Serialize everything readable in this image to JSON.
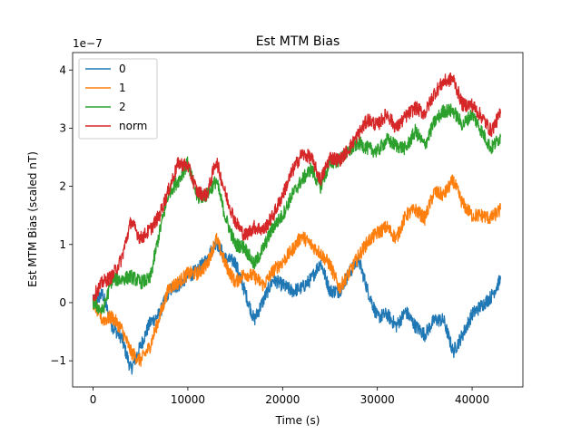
{
  "chart_data": {
    "type": "line",
    "title": "Est MTM Bias",
    "xlabel": "Time (s)",
    "ylabel": "Est MTM Bias (scaled nT)",
    "y_scale_label": "1e−7",
    "xlim": [
      -2160,
      45360
    ],
    "ylim": [
      -1.45,
      4.3
    ],
    "xticks": [
      0,
      10000,
      20000,
      30000,
      40000
    ],
    "xtick_labels": [
      "0",
      "10000",
      "20000",
      "30000",
      "40000"
    ],
    "yticks": [
      -1,
      0,
      1,
      2,
      3,
      4
    ],
    "ytick_labels": [
      "−1",
      "0",
      "1",
      "2",
      "3",
      "4"
    ],
    "grid": false,
    "legend_position": "upper-left",
    "noise": 0.12,
    "series": [
      {
        "name": "0",
        "color": "#1f77b4",
        "points": [
          [
            0,
            0
          ],
          [
            1000,
            0.15
          ],
          [
            2000,
            -0.4
          ],
          [
            3000,
            -0.6
          ],
          [
            4000,
            -1.15
          ],
          [
            5000,
            -0.75
          ],
          [
            6000,
            -0.35
          ],
          [
            7000,
            -0.2
          ],
          [
            8000,
            0.2
          ],
          [
            9000,
            0.3
          ],
          [
            10000,
            0.45
          ],
          [
            11000,
            0.55
          ],
          [
            12000,
            0.75
          ],
          [
            13000,
            1.05
          ],
          [
            14000,
            0.75
          ],
          [
            15000,
            0.7
          ],
          [
            16000,
            0.2
          ],
          [
            17000,
            -0.3
          ],
          [
            18000,
            0.05
          ],
          [
            19000,
            0.4
          ],
          [
            20000,
            0.3
          ],
          [
            21000,
            0.2
          ],
          [
            22000,
            0.25
          ],
          [
            23000,
            0.4
          ],
          [
            24000,
            0.7
          ],
          [
            25000,
            0.2
          ],
          [
            26000,
            0.2
          ],
          [
            27000,
            0.5
          ],
          [
            28000,
            0.75
          ],
          [
            29000,
            0.2
          ],
          [
            30000,
            -0.25
          ],
          [
            31000,
            -0.2
          ],
          [
            32000,
            -0.4
          ],
          [
            33000,
            -0.15
          ],
          [
            34000,
            -0.4
          ],
          [
            35000,
            -0.55
          ],
          [
            36000,
            -0.3
          ],
          [
            37000,
            -0.3
          ],
          [
            38000,
            -0.85
          ],
          [
            39000,
            -0.55
          ],
          [
            40000,
            -0.2
          ],
          [
            41000,
            -0.05
          ],
          [
            42000,
            0.1
          ],
          [
            43000,
            0.4
          ]
        ]
      },
      {
        "name": "1",
        "color": "#ff7f0e",
        "points": [
          [
            0,
            0
          ],
          [
            1000,
            -0.3
          ],
          [
            2000,
            -0.25
          ],
          [
            3000,
            -0.45
          ],
          [
            4000,
            -0.85
          ],
          [
            5000,
            -1.0
          ],
          [
            6000,
            -0.75
          ],
          [
            7000,
            -0.25
          ],
          [
            8000,
            0.25
          ],
          [
            9000,
            0.35
          ],
          [
            10000,
            0.5
          ],
          [
            11000,
            0.5
          ],
          [
            12000,
            0.65
          ],
          [
            13000,
            1.1
          ],
          [
            14000,
            0.65
          ],
          [
            15000,
            0.35
          ],
          [
            16000,
            0.5
          ],
          [
            17000,
            0.45
          ],
          [
            18000,
            0.3
          ],
          [
            19000,
            0.55
          ],
          [
            20000,
            0.7
          ],
          [
            21000,
            0.9
          ],
          [
            22000,
            1.15
          ],
          [
            23000,
            1.0
          ],
          [
            24000,
            0.85
          ],
          [
            25000,
            0.65
          ],
          [
            26000,
            0.25
          ],
          [
            27000,
            0.5
          ],
          [
            28000,
            0.8
          ],
          [
            29000,
            1.05
          ],
          [
            30000,
            1.2
          ],
          [
            31000,
            1.3
          ],
          [
            32000,
            1.1
          ],
          [
            33000,
            1.5
          ],
          [
            34000,
            1.6
          ],
          [
            35000,
            1.45
          ],
          [
            36000,
            1.9
          ],
          [
            37000,
            1.85
          ],
          [
            38000,
            2.1
          ],
          [
            39000,
            1.7
          ],
          [
            40000,
            1.5
          ],
          [
            41000,
            1.5
          ],
          [
            42000,
            1.45
          ],
          [
            43000,
            1.6
          ]
        ]
      },
      {
        "name": "2",
        "color": "#2ca02c",
        "points": [
          [
            0,
            0
          ],
          [
            1000,
            -0.15
          ],
          [
            2000,
            0.4
          ],
          [
            3000,
            0.4
          ],
          [
            4000,
            0.45
          ],
          [
            5000,
            0.35
          ],
          [
            6000,
            0.4
          ],
          [
            7000,
            1.2
          ],
          [
            8000,
            1.9
          ],
          [
            9000,
            2.1
          ],
          [
            10000,
            2.4
          ],
          [
            11000,
            1.8
          ],
          [
            12000,
            1.85
          ],
          [
            13000,
            2.1
          ],
          [
            14000,
            1.45
          ],
          [
            15000,
            1.0
          ],
          [
            16000,
            0.95
          ],
          [
            17000,
            0.65
          ],
          [
            18000,
            0.95
          ],
          [
            19000,
            1.3
          ],
          [
            20000,
            1.5
          ],
          [
            21000,
            1.85
          ],
          [
            22000,
            2.1
          ],
          [
            23000,
            2.3
          ],
          [
            24000,
            2.0
          ],
          [
            25000,
            2.4
          ],
          [
            26000,
            2.45
          ],
          [
            27000,
            2.6
          ],
          [
            28000,
            2.75
          ],
          [
            29000,
            2.65
          ],
          [
            30000,
            2.6
          ],
          [
            31000,
            2.8
          ],
          [
            32000,
            2.7
          ],
          [
            33000,
            2.65
          ],
          [
            34000,
            2.95
          ],
          [
            35000,
            2.7
          ],
          [
            36000,
            3.1
          ],
          [
            37000,
            3.3
          ],
          [
            38000,
            3.3
          ],
          [
            39000,
            3.05
          ],
          [
            40000,
            3.25
          ],
          [
            41000,
            2.95
          ],
          [
            42000,
            2.65
          ],
          [
            43000,
            2.85
          ]
        ]
      },
      {
        "name": "norm",
        "color": "#d62728",
        "points": [
          [
            0,
            0.1
          ],
          [
            1000,
            0.35
          ],
          [
            2000,
            0.45
          ],
          [
            3000,
            0.75
          ],
          [
            4000,
            1.4
          ],
          [
            5000,
            1.1
          ],
          [
            6000,
            1.25
          ],
          [
            7000,
            1.5
          ],
          [
            8000,
            1.95
          ],
          [
            9000,
            2.4
          ],
          [
            10000,
            2.35
          ],
          [
            11000,
            1.9
          ],
          [
            12000,
            1.85
          ],
          [
            13000,
            2.45
          ],
          [
            14000,
            1.85
          ],
          [
            15000,
            1.4
          ],
          [
            16000,
            1.15
          ],
          [
            17000,
            1.3
          ],
          [
            18000,
            1.25
          ],
          [
            19000,
            1.5
          ],
          [
            20000,
            1.85
          ],
          [
            21000,
            2.25
          ],
          [
            22000,
            2.55
          ],
          [
            23000,
            2.5
          ],
          [
            24000,
            2.1
          ],
          [
            25000,
            2.5
          ],
          [
            26000,
            2.45
          ],
          [
            27000,
            2.65
          ],
          [
            28000,
            2.9
          ],
          [
            29000,
            3.15
          ],
          [
            30000,
            3.05
          ],
          [
            31000,
            3.25
          ],
          [
            32000,
            3.0
          ],
          [
            33000,
            3.2
          ],
          [
            34000,
            3.35
          ],
          [
            35000,
            3.25
          ],
          [
            36000,
            3.6
          ],
          [
            37000,
            3.8
          ],
          [
            38000,
            3.85
          ],
          [
            39000,
            3.4
          ],
          [
            40000,
            3.4
          ],
          [
            41000,
            3.2
          ],
          [
            42000,
            2.95
          ],
          [
            43000,
            3.25
          ]
        ]
      }
    ]
  }
}
